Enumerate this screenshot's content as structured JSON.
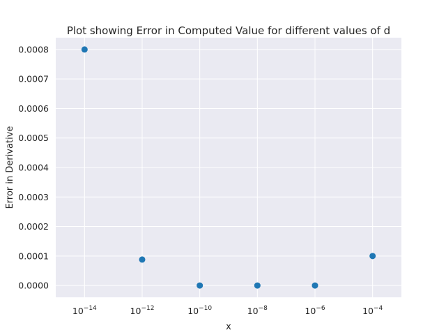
{
  "chart_data": {
    "type": "scatter",
    "title": "Plot showing Error in Computed Value for different values of d",
    "xlabel": "x",
    "ylabel": "Error in Derivative",
    "x_scale": "log",
    "xlim": [
      1e-15,
      0.001
    ],
    "ylim": [
      -4e-05,
      0.00084
    ],
    "x_ticks": [
      {
        "value": 1e-14,
        "base": "10",
        "exp": "−14"
      },
      {
        "value": 1e-12,
        "base": "10",
        "exp": "−12"
      },
      {
        "value": 1e-10,
        "base": "10",
        "exp": "−10"
      },
      {
        "value": 1e-08,
        "base": "10",
        "exp": "−8"
      },
      {
        "value": 1e-06,
        "base": "10",
        "exp": "−6"
      },
      {
        "value": 0.0001,
        "base": "10",
        "exp": "−4"
      }
    ],
    "y_ticks": [
      {
        "value": 0.0,
        "label": "0.0000"
      },
      {
        "value": 0.0001,
        "label": "0.0001"
      },
      {
        "value": 0.0002,
        "label": "0.0002"
      },
      {
        "value": 0.0003,
        "label": "0.0003"
      },
      {
        "value": 0.0004,
        "label": "0.0004"
      },
      {
        "value": 0.0005,
        "label": "0.0005"
      },
      {
        "value": 0.0006,
        "label": "0.0006"
      },
      {
        "value": 0.0007,
        "label": "0.0007"
      },
      {
        "value": 0.0008,
        "label": "0.0008"
      }
    ],
    "x": [
      1e-14,
      1e-12,
      1e-10,
      1e-08,
      1e-06,
      0.0001
    ],
    "y": [
      0.0008,
      8.8e-05,
      0.0,
      0.0,
      0.0,
      0.0001
    ],
    "grid": true,
    "marker_color": "#1f77b4",
    "background_color": "#eaeaf2",
    "grid_color": "#ffffff"
  }
}
